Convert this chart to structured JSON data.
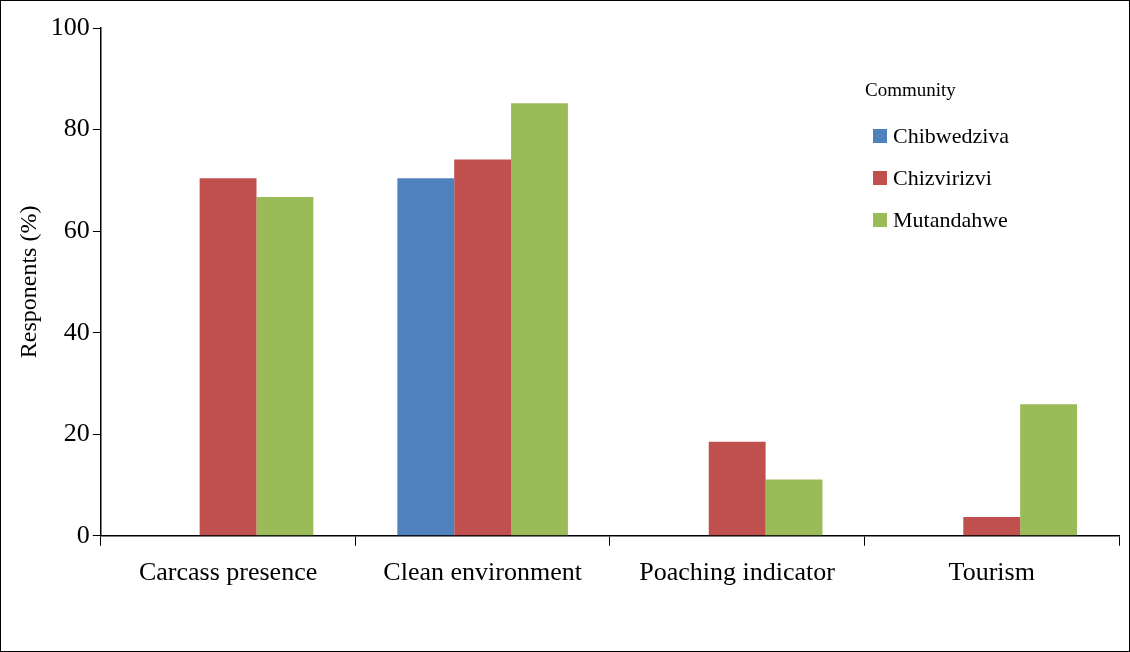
{
  "chart_data": {
    "type": "bar",
    "ylabel": "Responents (%)",
    "legend_title": "Community",
    "categories": [
      "Carcass presence",
      "Clean environment",
      "Poaching indicator",
      "Tourism"
    ],
    "series": [
      {
        "name": "Chibwedziva",
        "color": "#4f81bd",
        "values": [
          0,
          70.4,
          0,
          0
        ]
      },
      {
        "name": "Chizvirizvi",
        "color": "#c0504d",
        "values": [
          70.4,
          74.1,
          18.5,
          3.7
        ]
      },
      {
        "name": "Mutandahwe",
        "color": "#9bbb59",
        "values": [
          66.7,
          85.2,
          11.1,
          25.9
        ]
      }
    ],
    "ylim": [
      0,
      100
    ],
    "yticks": [
      0,
      20,
      40,
      60,
      80,
      100
    ],
    "grid": false,
    "legend": "top right"
  }
}
